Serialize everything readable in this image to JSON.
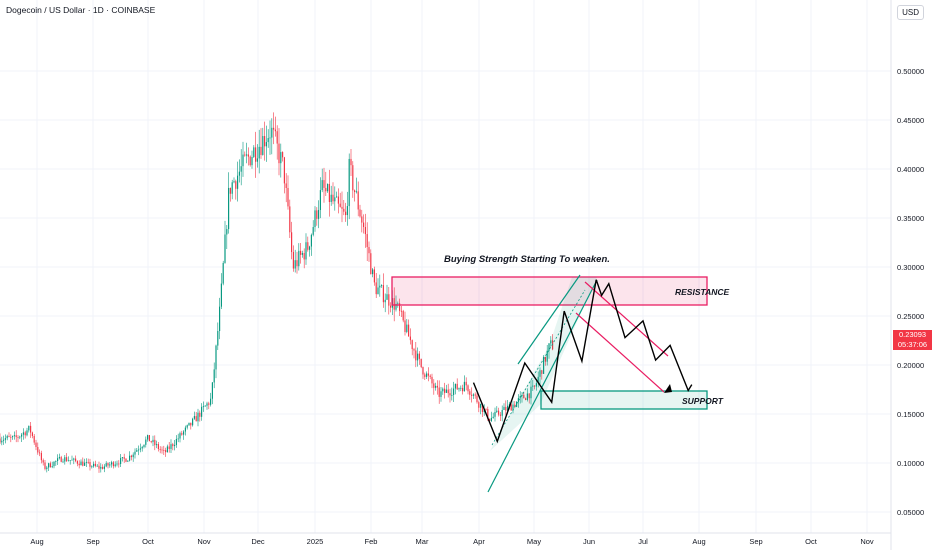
{
  "header": {
    "symbol_title": "Dogecoin / US Dollar · 1D · COINBASE",
    "currency": "USD"
  },
  "last_price": {
    "value": "0.23093",
    "countdown": "05:37:06",
    "color": "#f23645"
  },
  "chart_data": {
    "type": "candlestick",
    "x_tick_labels": [
      "Aug",
      "Sep",
      "Oct",
      "Nov",
      "Dec",
      "2025",
      "Feb",
      "Mar",
      "Apr",
      "May",
      "Jun",
      "Jul",
      "Aug",
      "Sep",
      "Oct",
      "Nov"
    ],
    "y_tick_labels": [
      "0.05000",
      "0.10000",
      "0.15000",
      "0.20000",
      "0.25000",
      "0.30000",
      "0.35000",
      "0.40000",
      "0.45000",
      "0.50000"
    ],
    "y_tick_values": [
      0.05,
      0.1,
      0.15,
      0.2,
      0.25,
      0.3,
      0.35,
      0.4,
      0.45,
      0.5
    ],
    "ylim": [
      0.02,
      0.555
    ],
    "grid": true,
    "price_path": [
      {
        "date": "2024-07-20",
        "price": 0.125
      },
      {
        "date": "2024-07-28",
        "price": 0.135
      },
      {
        "date": "2024-08-05",
        "price": 0.095
      },
      {
        "date": "2024-08-15",
        "price": 0.105
      },
      {
        "date": "2024-09-05",
        "price": 0.095
      },
      {
        "date": "2024-09-20",
        "price": 0.105
      },
      {
        "date": "2024-10-01",
        "price": 0.125
      },
      {
        "date": "2024-10-10",
        "price": 0.11
      },
      {
        "date": "2024-10-25",
        "price": 0.14
      },
      {
        "date": "2024-11-05",
        "price": 0.165
      },
      {
        "date": "2024-11-10",
        "price": 0.26
      },
      {
        "date": "2024-11-15",
        "price": 0.38
      },
      {
        "date": "2024-11-25",
        "price": 0.41
      },
      {
        "date": "2024-12-08",
        "price": 0.44
      },
      {
        "date": "2024-12-15",
        "price": 0.4
      },
      {
        "date": "2024-12-20",
        "price": 0.3
      },
      {
        "date": "2024-12-28",
        "price": 0.32
      },
      {
        "date": "2025-01-05",
        "price": 0.38
      },
      {
        "date": "2025-01-18",
        "price": 0.35
      },
      {
        "date": "2025-01-20",
        "price": 0.4
      },
      {
        "date": "2025-01-28",
        "price": 0.34
      },
      {
        "date": "2025-02-03",
        "price": 0.28
      },
      {
        "date": "2025-02-15",
        "price": 0.26
      },
      {
        "date": "2025-02-28",
        "price": 0.2
      },
      {
        "date": "2025-03-10",
        "price": 0.17
      },
      {
        "date": "2025-03-25",
        "price": 0.18
      },
      {
        "date": "2025-04-07",
        "price": 0.145
      },
      {
        "date": "2025-04-20",
        "price": 0.16
      },
      {
        "date": "2025-05-01",
        "price": 0.175
      },
      {
        "date": "2025-05-10",
        "price": 0.22
      }
    ],
    "annotations": {
      "headline": "Buying Strength Starting To weaken.",
      "resistance_label": "RESISTANCE",
      "support_label": "SUPPORT",
      "resistance_zone": {
        "price_low": 0.262,
        "price_high": 0.291,
        "start": "2025-02-12",
        "end": "2025-08-01",
        "color": "#e91e63"
      },
      "support_zone": {
        "price_low": 0.157,
        "price_high": 0.176,
        "start": "2025-05-10",
        "end": "2025-08-01",
        "color": "#089981"
      },
      "projection_path": [
        {
          "date": "2025-03-29",
          "price": 0.182
        },
        {
          "date": "2025-04-11",
          "price": 0.122
        },
        {
          "date": "2025-04-26",
          "price": 0.202
        },
        {
          "date": "2025-05-11",
          "price": 0.162
        },
        {
          "date": "2025-05-18",
          "price": 0.255
        },
        {
          "date": "2025-05-28",
          "price": 0.204
        },
        {
          "date": "2025-06-05",
          "price": 0.287
        },
        {
          "date": "2025-06-08",
          "price": 0.271
        },
        {
          "date": "2025-06-12",
          "price": 0.283
        },
        {
          "date": "2025-06-21",
          "price": 0.228
        },
        {
          "date": "2025-07-01",
          "price": 0.245
        },
        {
          "date": "2025-07-08",
          "price": 0.205
        },
        {
          "date": "2025-07-16",
          "price": 0.22
        },
        {
          "date": "2025-07-26",
          "price": 0.174
        },
        {
          "date": "2025-07-28",
          "price": 0.18
        }
      ]
    }
  }
}
